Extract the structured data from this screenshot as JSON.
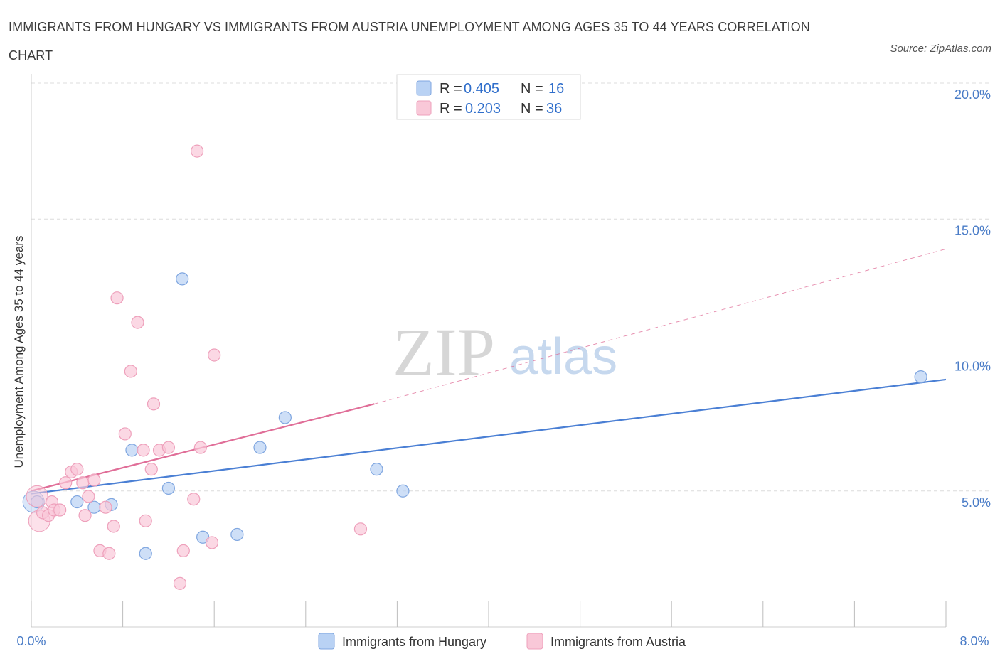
{
  "chart_data": {
    "type": "scatter",
    "title": "IMMIGRANTS FROM HUNGARY VS IMMIGRANTS FROM AUSTRIA UNEMPLOYMENT AMONG AGES 35 TO 44 YEARS CORRELATION CHART",
    "source": "Source: ZipAtlas.com",
    "ylabel": "Unemployment Among Ages 35 to 44 years",
    "xlim": [
      0,
      8
    ],
    "ylim": [
      0,
      20
    ],
    "x_tick_labels": [
      "0.0%",
      "8.0%"
    ],
    "y_ticks": [
      {
        "value": 5,
        "label": "5.0%"
      },
      {
        "value": 10,
        "label": "10.0%"
      },
      {
        "value": 15,
        "label": "15.0%"
      },
      {
        "value": 20,
        "label": "20.0%"
      }
    ],
    "legend": [
      {
        "r_label": "R =",
        "r_value": "0.405",
        "n_label": "N =",
        "n_value": "16"
      },
      {
        "r_label": "R =",
        "r_value": "0.203",
        "n_label": "N =",
        "n_value": "36"
      }
    ],
    "watermark": {
      "zip": "ZIP",
      "atlas": "atlas"
    },
    "series": [
      {
        "name": "Immigrants from Hungary",
        "color": "#4a7fd4",
        "fill": "#b9d2f4",
        "stroke": "#7fa6e0",
        "trend": {
          "x0": 0.0,
          "y0": 4.9,
          "x1": 8.0,
          "y1": 9.1,
          "dashed_to": null
        },
        "points": [
          [
            0.05,
            4.6
          ],
          [
            0.4,
            4.6
          ],
          [
            0.55,
            4.4
          ],
          [
            0.7,
            4.5
          ],
          [
            0.88,
            6.5
          ],
          [
            1.0,
            2.7
          ],
          [
            1.2,
            5.1
          ],
          [
            1.32,
            12.8
          ],
          [
            1.5,
            3.3
          ],
          [
            1.8,
            3.4
          ],
          [
            2.0,
            6.6
          ],
          [
            2.22,
            7.7
          ],
          [
            3.02,
            5.8
          ],
          [
            3.25,
            5.0
          ],
          [
            7.78,
            9.2
          ]
        ],
        "large_points": [
          [
            0.02,
            4.6
          ]
        ]
      },
      {
        "name": "Immigrants from Austria",
        "color": "#e06e98",
        "fill": "#f9c8d8",
        "stroke": "#eea0bb",
        "trend": {
          "x0": 0.0,
          "y0": 5.0,
          "x1": 3.0,
          "y1": 8.2,
          "dash_x1": 8.0,
          "dash_y1": 13.9
        },
        "points": [
          [
            0.1,
            4.2
          ],
          [
            0.15,
            4.1
          ],
          [
            0.18,
            4.6
          ],
          [
            0.2,
            4.3
          ],
          [
            0.25,
            4.3
          ],
          [
            0.3,
            5.3
          ],
          [
            0.35,
            5.7
          ],
          [
            0.4,
            5.8
          ],
          [
            0.45,
            5.3
          ],
          [
            0.47,
            4.1
          ],
          [
            0.5,
            4.8
          ],
          [
            0.55,
            5.4
          ],
          [
            0.6,
            2.8
          ],
          [
            0.65,
            4.4
          ],
          [
            0.68,
            2.7
          ],
          [
            0.72,
            3.7
          ],
          [
            0.75,
            12.1
          ],
          [
            0.82,
            7.1
          ],
          [
            0.87,
            9.4
          ],
          [
            0.93,
            11.2
          ],
          [
            0.98,
            6.5
          ],
          [
            1.0,
            3.9
          ],
          [
            1.05,
            5.8
          ],
          [
            1.07,
            8.2
          ],
          [
            1.12,
            6.5
          ],
          [
            1.2,
            6.6
          ],
          [
            1.3,
            1.6
          ],
          [
            1.33,
            2.8
          ],
          [
            1.42,
            4.7
          ],
          [
            1.45,
            17.5
          ],
          [
            1.48,
            6.6
          ],
          [
            1.58,
            3.1
          ],
          [
            1.6,
            10.0
          ],
          [
            2.88,
            3.6
          ]
        ],
        "large_points": [
          [
            0.05,
            4.8
          ],
          [
            0.07,
            3.9
          ]
        ]
      }
    ]
  }
}
